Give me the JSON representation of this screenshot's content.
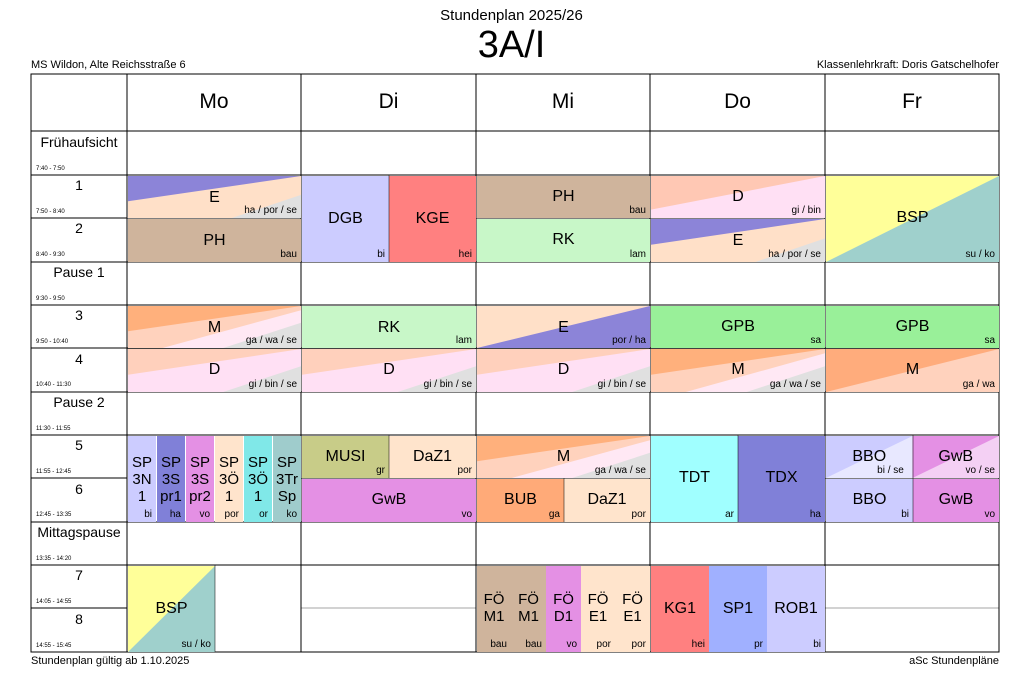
{
  "header": {
    "subtitle": "Stundenplan 2025/26",
    "class_name": "3A/I",
    "school": "MS Wildon, Alte Reichsstraße 6",
    "teacher": "Klassenlehrkraft: Doris Gatschelhofer"
  },
  "footer": {
    "validity": "Stundenplan gültig ab 1.10.2025",
    "software": "aSc Stundenpläne"
  },
  "days": [
    "Mo",
    "Di",
    "Mi",
    "Do",
    "Fr"
  ],
  "periods": [
    {
      "label": "Frühaufsicht",
      "time": "7:40 - 7:50"
    },
    {
      "label": "1",
      "time": "7:50 - 8:40"
    },
    {
      "label": "2",
      "time": "8:40 - 9:30"
    },
    {
      "label": "Pause 1",
      "time": "9:30 - 9:50"
    },
    {
      "label": "3",
      "time": "9:50 - 10:40"
    },
    {
      "label": "4",
      "time": "10:40 - 11:30"
    },
    {
      "label": "Pause 2",
      "time": "11:30 - 11:55"
    },
    {
      "label": "5",
      "time": "11:55 - 12:45"
    },
    {
      "label": "6",
      "time": "12:45 - 13:35"
    },
    {
      "label": "Mittagspause",
      "time": "13:35 - 14:20"
    },
    {
      "label": "7",
      "time": "14:05 - 14:55"
    },
    {
      "label": "8",
      "time": "14:55 - 15:45"
    }
  ],
  "lessons": {
    "mo_1": {
      "subject": "E",
      "teachers": "ha / por / se"
    },
    "mo_2": {
      "subject": "PH",
      "teachers": "bau"
    },
    "mo_3": {
      "subject": "M",
      "teachers": "ga / wa / se"
    },
    "mo_4": {
      "subject": "D",
      "teachers": "gi / bin / se"
    },
    "mo_56_a": {
      "subject": "SP 3N 1",
      "teachers": "bi"
    },
    "mo_56_b": {
      "subject": "SP 3S pr1",
      "teachers": "ha"
    },
    "mo_56_c": {
      "subject": "SP 3S pr2",
      "teachers": "vo"
    },
    "mo_56_d": {
      "subject": "SP 3Ö 1",
      "teachers": "por"
    },
    "mo_56_e": {
      "subject": "SP 3Ö 1",
      "teachers": "or"
    },
    "mo_56_f": {
      "subject": "SP 3Tr Sp",
      "teachers": "ko"
    },
    "mo_78": {
      "subject": "BSP",
      "teachers": "su / ko"
    },
    "di_12_a": {
      "subject": "DGB",
      "teachers": "bi"
    },
    "di_12_b": {
      "subject": "KGE",
      "teachers": "hei"
    },
    "di_3": {
      "subject": "RK",
      "teachers": "lam"
    },
    "di_4": {
      "subject": "D",
      "teachers": "gi / bin / se"
    },
    "di_5_a": {
      "subject": "MUSI",
      "teachers": "gr"
    },
    "di_5_b": {
      "subject": "DaZ1",
      "teachers": "por"
    },
    "di_6": {
      "subject": "GwB",
      "teachers": "vo"
    },
    "mi_1": {
      "subject": "PH",
      "teachers": "bau"
    },
    "mi_2": {
      "subject": "RK",
      "teachers": "lam"
    },
    "mi_3": {
      "subject": "E",
      "teachers": "por / ha"
    },
    "mi_4": {
      "subject": "D",
      "teachers": "gi / bin / se"
    },
    "mi_5": {
      "subject": "M",
      "teachers": "ga / wa / se"
    },
    "mi_6_a": {
      "subject": "BUB",
      "teachers": "ga"
    },
    "mi_6_b": {
      "subject": "DaZ1",
      "teachers": "por"
    },
    "mi_78_a": {
      "subject": "FÖ M1",
      "teachers": "bau"
    },
    "mi_78_b": {
      "subject": "FÖ M1",
      "teachers": "bau"
    },
    "mi_78_c": {
      "subject": "FÖ D1",
      "teachers": "vo"
    },
    "mi_78_d": {
      "subject": "FÖ E1",
      "teachers": "por"
    },
    "mi_78_e": {
      "subject": "FÖ E1",
      "teachers": "por"
    },
    "do_1": {
      "subject": "D",
      "teachers": "gi / bin"
    },
    "do_2": {
      "subject": "E",
      "teachers": "ha / por / se"
    },
    "do_3": {
      "subject": "GPB",
      "teachers": "sa"
    },
    "do_4": {
      "subject": "M",
      "teachers": "ga / wa / se"
    },
    "do_56_a": {
      "subject": "TDT",
      "teachers": "ar"
    },
    "do_56_b": {
      "subject": "TDX",
      "teachers": "ha"
    },
    "do_78_a": {
      "subject": "KG1",
      "teachers": "hei"
    },
    "do_78_b": {
      "subject": "SP1",
      "teachers": "pr"
    },
    "do_78_c": {
      "subject": "ROB1",
      "teachers": "bi"
    },
    "fr_12": {
      "subject": "BSP",
      "teachers": "su / ko"
    },
    "fr_3": {
      "subject": "GPB",
      "teachers": "sa"
    },
    "fr_4": {
      "subject": "M",
      "teachers": "ga / wa"
    },
    "fr_5_a": {
      "subject": "BBO",
      "teachers": "bi / se"
    },
    "fr_5_b": {
      "subject": "GwB",
      "teachers": "vo / se"
    },
    "fr_6_a": {
      "subject": "BBO",
      "teachers": "bi"
    },
    "fr_6_b": {
      "subject": "GwB",
      "teachers": "vo"
    }
  },
  "colors": {
    "E": "#ffe0c8",
    "E_dark": "#8c84d8",
    "PH": "#cfb49c",
    "M": "#ffd2bd",
    "D": "#ffd6e8",
    "RK": "#c8f7c8",
    "DGB": "#ccccff",
    "KGE": "#ff8080",
    "GPB": "#99f099",
    "BSP_y": "#ffff99",
    "BSP_t": "#9fd0cc",
    "MUSI": "#c8cc88",
    "DaZ1": "#ffe4cc",
    "GwB": "#e490e4",
    "BUB": "#ffaa78",
    "TDT": "#a0ffff",
    "TDX": "#8080d8",
    "BBO": "#ccccff",
    "KG1": "#ff8080",
    "SP1": "#a0b0ff",
    "ROB1": "#ccccff"
  }
}
